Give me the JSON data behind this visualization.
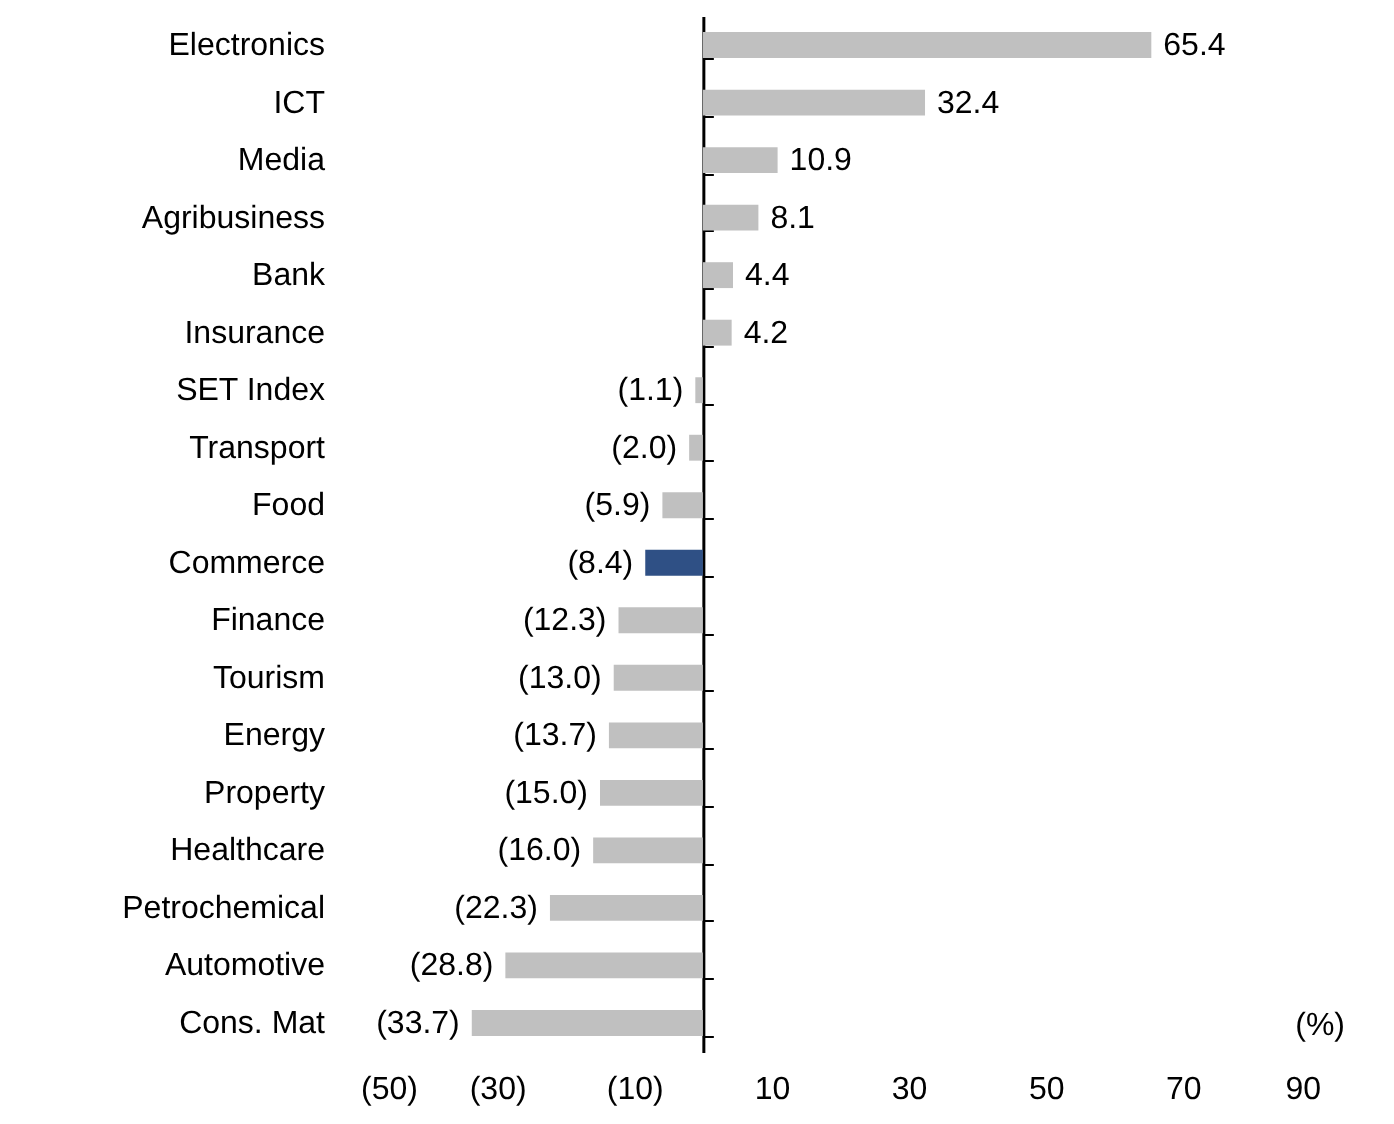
{
  "chart_data": {
    "type": "bar",
    "orientation": "horizontal",
    "xlabel": "(%)",
    "categories": [
      "Electronics",
      "ICT",
      "Media",
      "Agribusiness",
      "Bank",
      "Insurance",
      "SET Index",
      "Transport",
      "Food",
      "Commerce",
      "Finance",
      "Tourism",
      "Energy",
      "Property",
      "Healthcare",
      "Petrochemical",
      "Automotive",
      "Cons. Mat"
    ],
    "values": [
      65.4,
      32.4,
      10.9,
      8.1,
      4.4,
      4.2,
      -1.1,
      -2.0,
      -5.9,
      -8.4,
      -12.3,
      -13.0,
      -13.7,
      -15.0,
      -16.0,
      -22.3,
      -28.8,
      -33.7
    ],
    "colors": [
      "#c0c0c0",
      "#c0c0c0",
      "#c0c0c0",
      "#c0c0c0",
      "#c0c0c0",
      "#c0c0c0",
      "#c0c0c0",
      "#c0c0c0",
      "#c0c0c0",
      "#2f5085",
      "#c0c0c0",
      "#c0c0c0",
      "#c0c0c0",
      "#c0c0c0",
      "#c0c0c0",
      "#c0c0c0",
      "#c0c0c0",
      "#c0c0c0"
    ],
    "value_labels": [
      "65.4",
      "32.4",
      "10.9",
      "8.1",
      "4.4",
      "4.2",
      "(1.1)",
      "(2.0)",
      "(5.9)",
      "(8.4)",
      "(12.3)",
      "(13.0)",
      "(13.7)",
      "(15.0)",
      "(16.0)",
      "(22.3)",
      "(28.8)",
      "(33.7)"
    ],
    "xlim": [
      -50,
      90
    ],
    "xticks": [
      {
        "value": -50,
        "label": "(50)"
      },
      {
        "value": -30,
        "label": "(30)"
      },
      {
        "value": -10,
        "label": "(10)"
      },
      10,
      30,
      50,
      70,
      90
    ],
    "grid": false
  }
}
